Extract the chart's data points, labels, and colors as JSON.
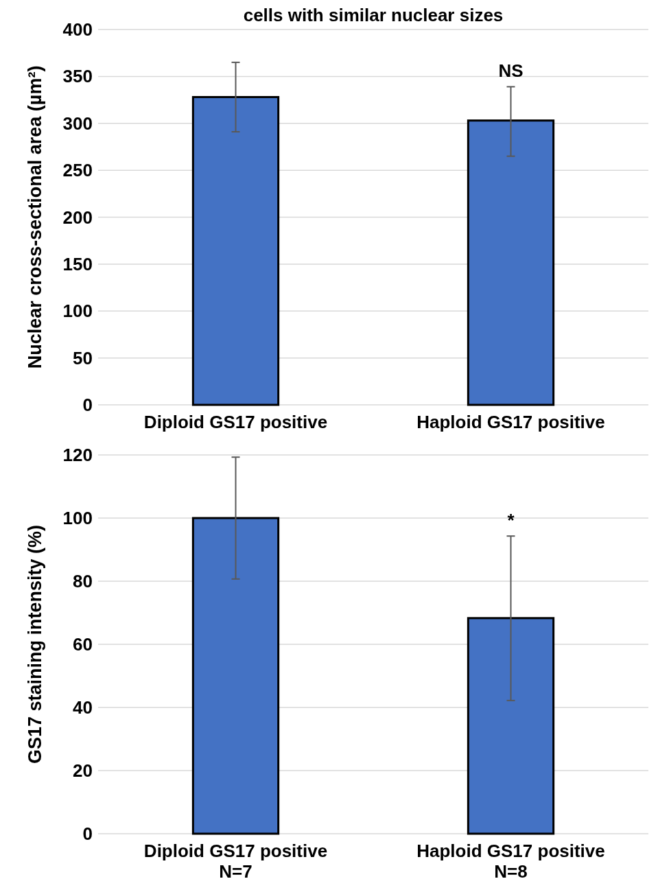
{
  "chart_data": [
    {
      "type": "bar",
      "title": "cells with similar nuclear sizes",
      "categories": [
        "Diploid GS17 positive",
        "Haploid GS17 positive"
      ],
      "values": [
        328,
        303
      ],
      "errors": [
        [
          291,
          365
        ],
        [
          265,
          339
        ]
      ],
      "color": "#4472c4",
      "ylabel": "Nuclear cross-sectional area (µm²)",
      "ylim": [
        0,
        400
      ],
      "yticks": [
        0,
        50,
        100,
        150,
        200,
        250,
        300,
        350,
        400
      ],
      "grid": "y",
      "annotations": [
        {
          "text": "NS",
          "x": "Haploid GS17 positive",
          "y": 339
        }
      ]
    },
    {
      "type": "bar",
      "categories": [
        "Diploid GS17 positive\nN=7",
        "Haploid GS17 positive\nN=8"
      ],
      "values": [
        100,
        68.3
      ],
      "errors": [
        [
          80.7,
          119.3
        ],
        [
          42.2,
          94.3
        ]
      ],
      "color": "#4472c4",
      "ylabel": "GS17 staining intensity (%)",
      "ylim": [
        0,
        120
      ],
      "yticks": [
        0,
        20,
        40,
        60,
        80,
        100,
        120
      ],
      "grid": "y",
      "annotations": [
        {
          "text": "*",
          "x": "Haploid GS17 positive\nN=8",
          "y": 94.3
        }
      ]
    }
  ]
}
